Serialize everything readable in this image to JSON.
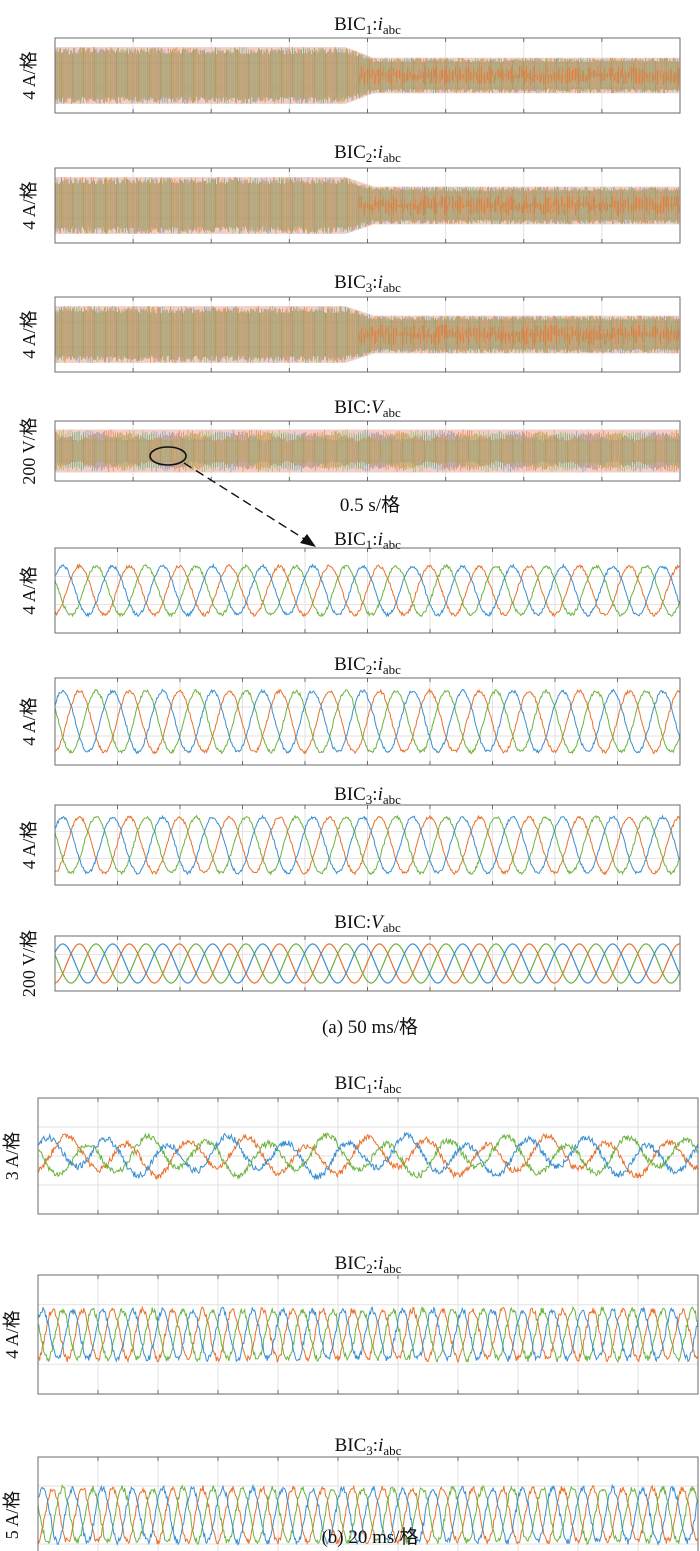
{
  "colors": {
    "phase_a": "#3a8fd0",
    "phase_b": "#e8722c",
    "phase_c": "#6cb33f",
    "envelope": "#e8a898"
  },
  "captions": {
    "top_timescale": "0.5 s/格",
    "a": "(a) 50 ms/格",
    "b": "(b) 20 ms/格"
  },
  "chart_data": [
    {
      "type": "line",
      "group": "a-overview",
      "title": "BIC1:iabc",
      "title_main": "BIC",
      "title_sub": "1",
      "title_sep": ":",
      "title_var": "i",
      "title_var_sub": "abc",
      "ylabel": "4 A/格",
      "xlabel": "0.5 s/格",
      "xdiv": 8,
      "ydiv": 3,
      "dense": true,
      "ylim": [
        -1.5,
        1.5
      ],
      "series": [
        {
          "amplitude_before": 1.2,
          "amplitude_after": 0.75,
          "change_at_div": 3.9
        }
      ]
    },
    {
      "type": "line",
      "group": "a-overview",
      "title": "BIC2:iabc",
      "title_main": "BIC",
      "title_sub": "2",
      "title_sep": ":",
      "title_var": "i",
      "title_var_sub": "abc",
      "ylabel": "4 A/格",
      "xlabel": "0.5 s/格",
      "xdiv": 8,
      "ydiv": 3,
      "dense": true,
      "ylim": [
        -1.5,
        1.5
      ],
      "series": [
        {
          "amplitude_before": 1.2,
          "amplitude_after": 0.8,
          "change_at_div": 3.9
        }
      ]
    },
    {
      "type": "line",
      "group": "a-overview",
      "title": "BIC3:iabc",
      "title_main": "BIC",
      "title_sub": "3",
      "title_sep": ":",
      "title_var": "i",
      "title_var_sub": "abc",
      "ylabel": "4 A/格",
      "xlabel": "0.5 s/格",
      "xdiv": 8,
      "ydiv": 3,
      "dense": true,
      "ylim": [
        -1.5,
        1.5
      ],
      "series": [
        {
          "amplitude_before": 1.2,
          "amplitude_after": 0.8,
          "change_at_div": 3.9
        }
      ]
    },
    {
      "type": "line",
      "group": "a-overview",
      "title": "BIC:Vabc",
      "title_main": "BIC",
      "title_sub": "",
      "title_sep": ":",
      "title_var": "V",
      "title_var_sub": "abc",
      "ylabel": "200 V/格",
      "xlabel": "0.5 s/格",
      "xdiv": 8,
      "ydiv": 3,
      "dense": true,
      "ylim": [
        -1.5,
        1.5
      ],
      "series": [
        {
          "amplitude_before": 1.15,
          "amplitude_after": 1.15,
          "change_at_div": 0
        }
      ]
    },
    {
      "type": "line",
      "group": "a-zoom",
      "title": "BIC1:iabc",
      "title_main": "BIC",
      "title_sub": "1",
      "title_sep": ":",
      "title_var": "i",
      "title_var_sub": "abc",
      "ylabel": "4 A/格",
      "xlabel": "50 ms/格",
      "xdiv": 10,
      "ydiv": 3,
      "cycles": 12.5,
      "amplitude": 0.9,
      "ylim": [
        -1.5,
        1.5
      ],
      "series": [
        {
          "name": "a"
        },
        {
          "name": "b"
        },
        {
          "name": "c"
        }
      ]
    },
    {
      "type": "line",
      "group": "a-zoom",
      "title": "BIC2:iabc",
      "title_main": "BIC",
      "title_sub": "2",
      "title_sep": ":",
      "title_var": "i",
      "title_var_sub": "abc",
      "ylabel": "4 A/格",
      "xlabel": "50 ms/格",
      "xdiv": 10,
      "ydiv": 3,
      "cycles": 12.5,
      "amplitude": 1.1,
      "ylim": [
        -1.5,
        1.5
      ],
      "series": [
        {
          "name": "a"
        },
        {
          "name": "b"
        },
        {
          "name": "c"
        }
      ]
    },
    {
      "type": "line",
      "group": "a-zoom",
      "title": "BIC3:iabc",
      "title_main": "BIC",
      "title_sub": "3",
      "title_sep": ":",
      "title_var": "i",
      "title_var_sub": "abc",
      "ylabel": "4 A/格",
      "xlabel": "50 ms/格",
      "xdiv": 10,
      "ydiv": 3,
      "cycles": 12.5,
      "amplitude": 1.1,
      "ylim": [
        -1.5,
        1.5
      ],
      "series": [
        {
          "name": "a"
        },
        {
          "name": "b"
        },
        {
          "name": "c"
        }
      ]
    },
    {
      "type": "line",
      "group": "a-zoom",
      "title": "BIC:Vabc",
      "title_main": "BIC",
      "title_sub": "",
      "title_sep": ":",
      "title_var": "V",
      "title_var_sub": "abc",
      "ylabel": "200 V/格",
      "xlabel": "50 ms/格",
      "xdiv": 10,
      "ydiv": 3,
      "cycles": 12.5,
      "amplitude": 1.15,
      "ylim": [
        -1.5,
        1.5
      ],
      "series": [
        {
          "name": "a"
        },
        {
          "name": "b"
        },
        {
          "name": "c"
        }
      ]
    },
    {
      "type": "line",
      "group": "b",
      "title": "BIC1:iabc",
      "title_main": "BIC",
      "title_sub": "1",
      "title_sep": ":",
      "title_var": "i",
      "title_var_sub": "abc",
      "ylabel": "3 A/格",
      "xlabel": "20 ms/格",
      "xdiv": 11,
      "ydiv": 4,
      "cycles": 11,
      "amplitude": 0.55,
      "ylim": [
        -2,
        2
      ],
      "series": [
        {
          "name": "a"
        },
        {
          "name": "b"
        },
        {
          "name": "c"
        }
      ]
    },
    {
      "type": "line",
      "group": "b",
      "title": "BIC2:iabc",
      "title_main": "BIC",
      "title_sub": "2",
      "title_sep": ":",
      "title_var": "i",
      "title_var_sub": "abc",
      "ylabel": "4 A/格",
      "xlabel": "20 ms/格",
      "xdiv": 11,
      "ydiv": 4,
      "cycles": 22,
      "amplitude": 0.85,
      "ylim": [
        -2,
        2
      ],
      "series": [
        {
          "name": "a"
        },
        {
          "name": "b"
        },
        {
          "name": "c"
        }
      ]
    },
    {
      "type": "line",
      "group": "b",
      "title": "BIC3:iabc",
      "title_main": "BIC",
      "title_sub": "3",
      "title_sep": ":",
      "title_var": "i",
      "title_var_sub": "abc",
      "ylabel": "5 A/格",
      "xlabel": "20 ms/格",
      "xdiv": 11,
      "ydiv": 4,
      "cycles": 22,
      "amplitude": 0.95,
      "ylim": [
        -2,
        2
      ],
      "series": [
        {
          "name": "a"
        },
        {
          "name": "b"
        },
        {
          "name": "c"
        }
      ]
    }
  ]
}
